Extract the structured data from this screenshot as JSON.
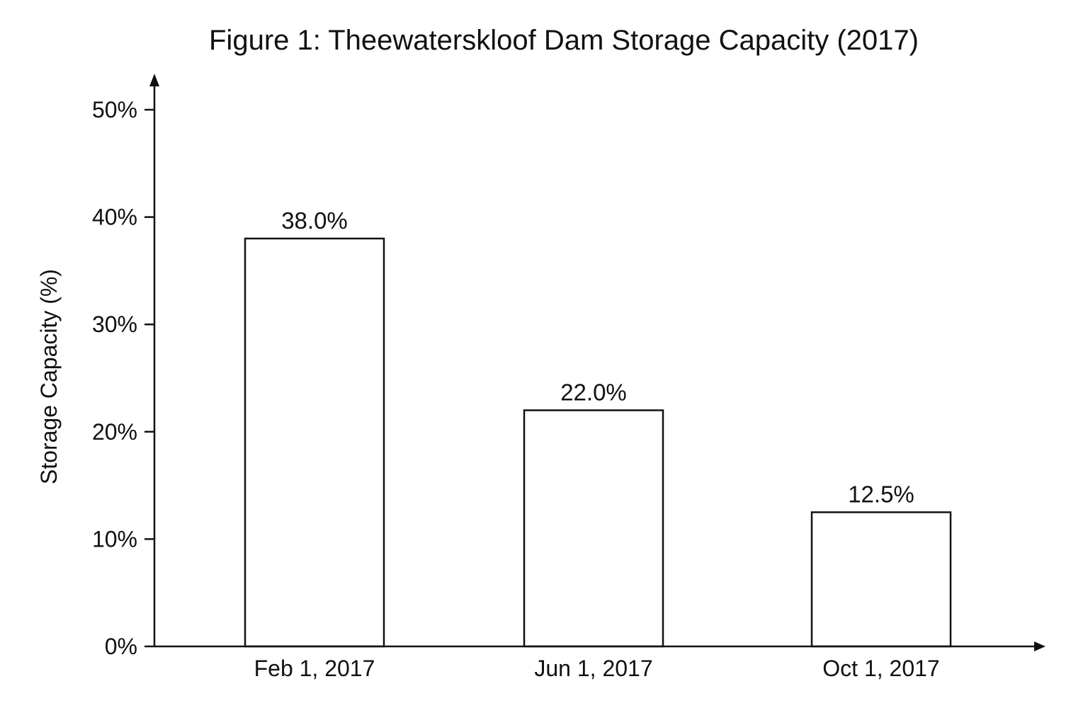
{
  "chart_data": {
    "type": "bar",
    "title": "Figure 1: Theewaterskloof Dam Storage Capacity (2017)",
    "xlabel": "",
    "ylabel": "Storage Capacity (%)",
    "categories": [
      "Feb 1, 2017",
      "Jun 1, 2017",
      "Oct 1, 2017"
    ],
    "values": [
      38.0,
      22.0,
      12.5
    ],
    "value_labels": [
      "38.0%",
      "22.0%",
      "12.5%"
    ],
    "ylim": [
      0,
      50
    ],
    "yticks": [
      0,
      10,
      20,
      30,
      40,
      50
    ],
    "ytick_labels": [
      "0%",
      "10%",
      "20%",
      "30%",
      "40%",
      "50%"
    ],
    "grid": false,
    "legend": "none",
    "bar_fill": "#ffffff",
    "bar_stroke": "#111111"
  }
}
